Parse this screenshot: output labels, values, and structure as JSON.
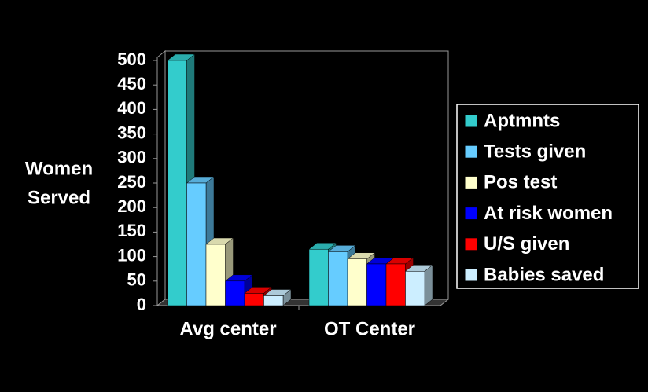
{
  "chart_data": {
    "type": "bar3d",
    "y_label_lines": [
      "Women",
      "Served"
    ],
    "categories": [
      "Avg center",
      "OT Center"
    ],
    "series": [
      {
        "name": "Aptmnts",
        "color": "#33cccc",
        "values": [
          500,
          115
        ]
      },
      {
        "name": "Tests given",
        "color": "#66ccff",
        "values": [
          250,
          110
        ]
      },
      {
        "name": "Pos test",
        "color": "#ffffcc",
        "values": [
          125,
          95
        ]
      },
      {
        "name": "At risk women",
        "color": "#0000ff",
        "values": [
          50,
          85
        ]
      },
      {
        "name": "U/S given",
        "color": "#ff0000",
        "values": [
          25,
          85
        ]
      },
      {
        "name": "Babies saved",
        "color": "#cceeff",
        "values": [
          20,
          70
        ]
      }
    ],
    "ylim": [
      0,
      500
    ],
    "yticks": [
      0,
      50,
      100,
      150,
      200,
      250,
      300,
      350,
      400,
      450,
      500
    ],
    "legend": "right"
  }
}
